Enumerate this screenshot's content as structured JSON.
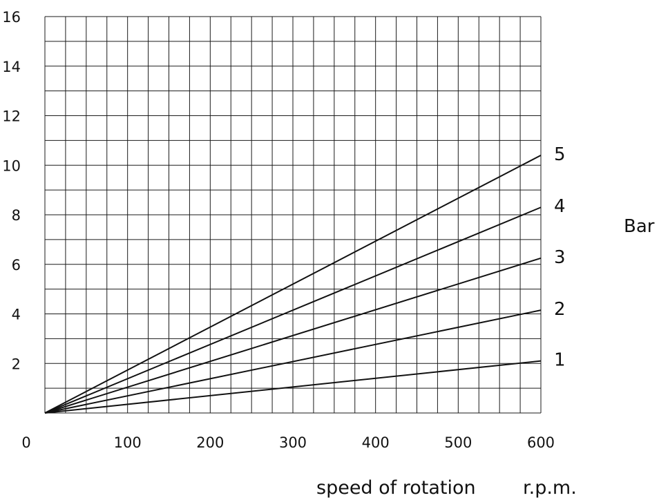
{
  "chart_data": {
    "type": "line",
    "x_ticks": [
      0,
      100,
      200,
      300,
      400,
      500,
      600
    ],
    "y_ticks": [
      2,
      4,
      6,
      8,
      10,
      12,
      14,
      16
    ],
    "xlim": [
      0,
      600
    ],
    "ylim": [
      0,
      16
    ],
    "grid": true,
    "xlabel": "speed of rotation",
    "xunit": "r.p.m.",
    "series_unit": "Bar",
    "series": [
      {
        "name": "1",
        "x": [
          0,
          600
        ],
        "y": [
          0,
          2.1
        ]
      },
      {
        "name": "2",
        "x": [
          0,
          600
        ],
        "y": [
          0,
          4.15
        ]
      },
      {
        "name": "3",
        "x": [
          0,
          600
        ],
        "y": [
          0,
          6.25
        ]
      },
      {
        "name": "4",
        "x": [
          0,
          600
        ],
        "y": [
          0,
          8.3
        ]
      },
      {
        "name": "5",
        "x": [
          0,
          600
        ],
        "y": [
          0,
          10.4
        ]
      }
    ]
  }
}
